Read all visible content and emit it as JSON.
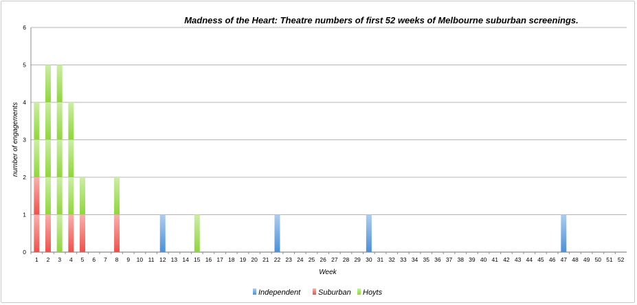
{
  "chart_data": {
    "type": "bar",
    "stacked": true,
    "title": "Madness of the Heart: Theatre numbers of first 52 weeks of Melbourne suburban screenings.",
    "xlabel": "Week",
    "ylabel": "number of engagements",
    "ylim": [
      0,
      6
    ],
    "yticks": [
      "0",
      "1",
      "2",
      "3",
      "4",
      "5",
      "6"
    ],
    "grid": true,
    "legend_position": "bottom",
    "categories": [
      "1",
      "2",
      "3",
      "4",
      "5",
      "6",
      "7",
      "8",
      "9",
      "10",
      "11",
      "12",
      "13",
      "14",
      "15",
      "16",
      "17",
      "18",
      "19",
      "20",
      "21",
      "22",
      "23",
      "24",
      "25",
      "26",
      "27",
      "28",
      "29",
      "30",
      "31",
      "32",
      "33",
      "34",
      "35",
      "36",
      "37",
      "38",
      "39",
      "40",
      "41",
      "42",
      "43",
      "44",
      "45",
      "46",
      "47",
      "48",
      "49",
      "50",
      "51",
      "52"
    ],
    "series": [
      {
        "name": "Independent",
        "color": "#4a90d9",
        "values": [
          0,
          0,
          0,
          0,
          0,
          0,
          0,
          0,
          0,
          0,
          0,
          1,
          0,
          0,
          0,
          0,
          0,
          0,
          0,
          0,
          0,
          1,
          0,
          0,
          0,
          0,
          0,
          0,
          0,
          1,
          0,
          0,
          0,
          0,
          0,
          0,
          0,
          0,
          0,
          0,
          0,
          0,
          0,
          0,
          0,
          0,
          1,
          0,
          0,
          0,
          0,
          0
        ]
      },
      {
        "name": "Suburban",
        "color": "#f0504a",
        "values": [
          2,
          1,
          0,
          1,
          1,
          0,
          0,
          1,
          0,
          0,
          0,
          0,
          0,
          0,
          0,
          0,
          0,
          0,
          0,
          0,
          0,
          0,
          0,
          0,
          0,
          0,
          0,
          0,
          0,
          0,
          0,
          0,
          0,
          0,
          0,
          0,
          0,
          0,
          0,
          0,
          0,
          0,
          0,
          0,
          0,
          0,
          0,
          0,
          0,
          0,
          0,
          0
        ]
      },
      {
        "name": "Hoyts",
        "color": "#8fd63a",
        "values": [
          2,
          4,
          5,
          3,
          1,
          0,
          0,
          1,
          0,
          0,
          0,
          0,
          0,
          0,
          1,
          0,
          0,
          0,
          0,
          0,
          0,
          0,
          0,
          0,
          0,
          0,
          0,
          0,
          0,
          0,
          0,
          0,
          0,
          0,
          0,
          0,
          0,
          0,
          0,
          0,
          0,
          0,
          0,
          0,
          0,
          0,
          0,
          0,
          0,
          0,
          0,
          0
        ]
      }
    ]
  }
}
